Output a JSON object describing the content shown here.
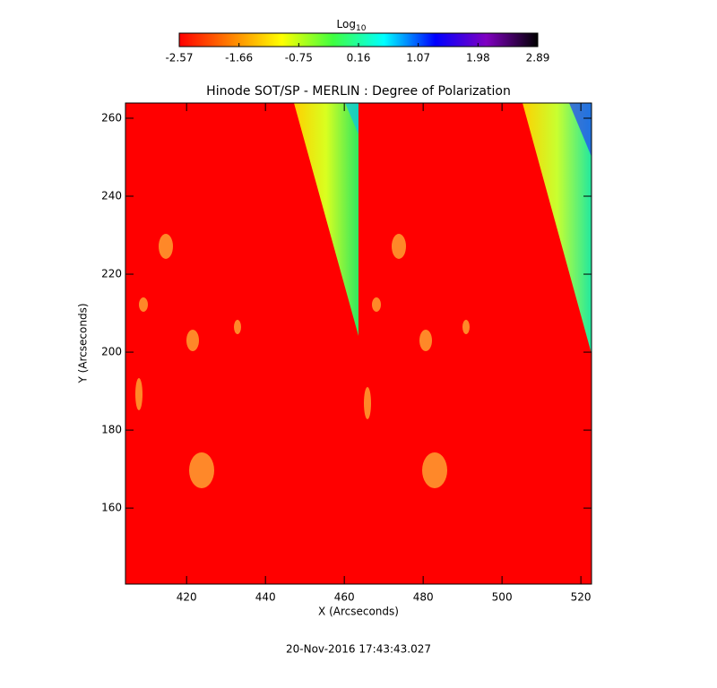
{
  "chart_data": {
    "type": "image",
    "title": "Hinode SOT/SP - MERLIN : Degree of Polarization",
    "x_label": "X (Arcseconds)",
    "y_label": "Y (Arcseconds)",
    "xlim": [
      404.5,
      522.7
    ],
    "ylim": [
      140.5,
      263.9
    ],
    "xticks": [
      420,
      440,
      460,
      480,
      500,
      520
    ],
    "yticks": [
      160,
      180,
      200,
      220,
      240,
      260
    ],
    "colorbar_label": "Log",
    "colorbar_label_subscript": "10",
    "colorbar_lim": [
      -2.57,
      2.89
    ],
    "colorbar_ticks": [
      -2.57,
      -1.66,
      -0.75,
      0.16,
      1.07,
      1.98,
      2.89
    ],
    "colormap": [
      "#ff0000",
      "#ff8000",
      "#ffff00",
      "#40ff40",
      "#00ffff",
      "#0000ff",
      "#8000c0",
      "#000000"
    ],
    "timestamp": "20-Nov-2016 17:43:43.027"
  }
}
